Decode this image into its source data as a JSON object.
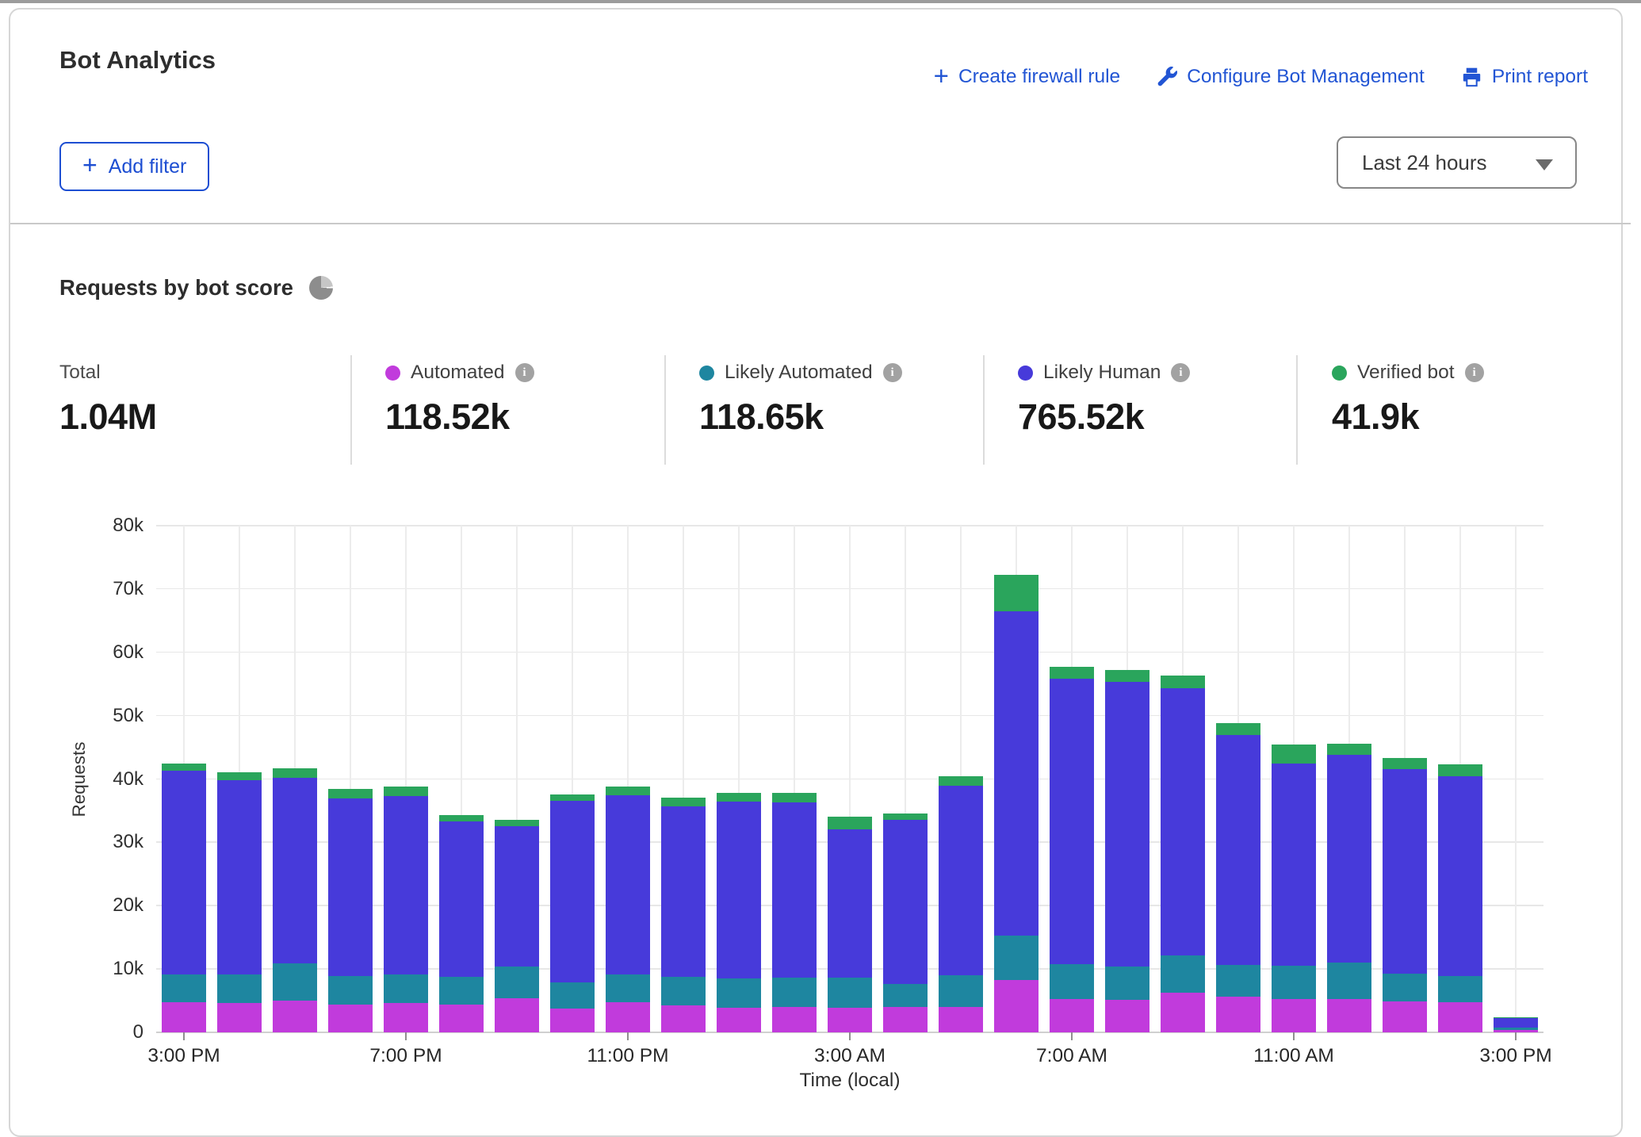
{
  "header": {
    "title": "Bot Analytics",
    "actions": [
      {
        "label": "Create firewall rule",
        "icon": "plus-icon"
      },
      {
        "label": "Configure Bot Management",
        "icon": "wrench-icon"
      },
      {
        "label": "Print report",
        "icon": "printer-icon"
      }
    ],
    "add_filter_label": "Add filter",
    "time_range": "Last 24 hours",
    "link_color": "#2255d4"
  },
  "section": {
    "heading": "Requests by bot score",
    "heading_icon": "pie-chart-icon"
  },
  "stats": {
    "total": {
      "label": "Total",
      "value": "1.04M"
    },
    "series": [
      {
        "label": "Automated",
        "value": "118.52k",
        "color": "#c13bdc"
      },
      {
        "label": "Likely Automated",
        "value": "118.65k",
        "color": "#1e86a0"
      },
      {
        "label": "Likely Human",
        "value": "765.52k",
        "color": "#473ada"
      },
      {
        "label": "Verified bot",
        "value": "41.9k",
        "color": "#2aa55c"
      }
    ]
  },
  "chart_data": {
    "type": "bar",
    "stacked": true,
    "title": "Requests by bot score",
    "xlabel": "Time (local)",
    "ylabel": "Requests",
    "ylim": [
      0,
      80000
    ],
    "grid": true,
    "legend_position": "top",
    "y_ticks": [
      "0",
      "10k",
      "20k",
      "30k",
      "40k",
      "50k",
      "60k",
      "70k",
      "80k"
    ],
    "x_ticks": [
      "3:00 PM",
      "7:00 PM",
      "11:00 PM",
      "3:00 AM",
      "7:00 AM",
      "11:00 AM",
      "3:00 PM"
    ],
    "x_tick_every": 4,
    "categories": [
      "3:00 PM",
      "4:00 PM",
      "5:00 PM",
      "6:00 PM",
      "7:00 PM",
      "8:00 PM",
      "9:00 PM",
      "10:00 PM",
      "11:00 PM",
      "12:00 AM",
      "1:00 AM",
      "2:00 AM",
      "3:00 AM",
      "4:00 AM",
      "5:00 AM",
      "6:00 AM",
      "7:00 AM",
      "8:00 AM",
      "9:00 AM",
      "10:00 AM",
      "11:00 AM",
      "12:00 PM",
      "1:00 PM",
      "2:00 PM",
      "3:00 PM"
    ],
    "series": [
      {
        "name": "Automated",
        "color": "#c13bdc",
        "values": [
          4700,
          4600,
          5000,
          4400,
          4600,
          4400,
          5400,
          3700,
          4700,
          4300,
          3900,
          4000,
          3900,
          4000,
          4000,
          8300,
          5200,
          5100,
          6200,
          5600,
          5300,
          5200,
          4900,
          4800,
          400
        ]
      },
      {
        "name": "Likely Automated",
        "color": "#1e86a0",
        "values": [
          4500,
          4600,
          5900,
          4500,
          4600,
          4400,
          5000,
          4200,
          4500,
          4500,
          4600,
          4700,
          4700,
          3700,
          5000,
          7000,
          5600,
          5300,
          5900,
          5100,
          5200,
          5800,
          4400,
          4100,
          400
        ]
      },
      {
        "name": "Likely Human",
        "color": "#473ada",
        "values": [
          32100,
          30600,
          29300,
          28000,
          28100,
          24500,
          22100,
          28600,
          28300,
          26900,
          27900,
          27600,
          23500,
          25800,
          30000,
          51200,
          45100,
          44900,
          42300,
          36300,
          31900,
          32800,
          32300,
          31500,
          1500
        ]
      },
      {
        "name": "Verified bot",
        "color": "#2aa55c",
        "values": [
          1200,
          1300,
          1500,
          1500,
          1500,
          1000,
          1100,
          1000,
          1300,
          1400,
          1400,
          1500,
          2000,
          1100,
          1400,
          5800,
          1800,
          1900,
          2000,
          1800,
          3000,
          1800,
          1700,
          1900,
          100
        ]
      }
    ]
  }
}
